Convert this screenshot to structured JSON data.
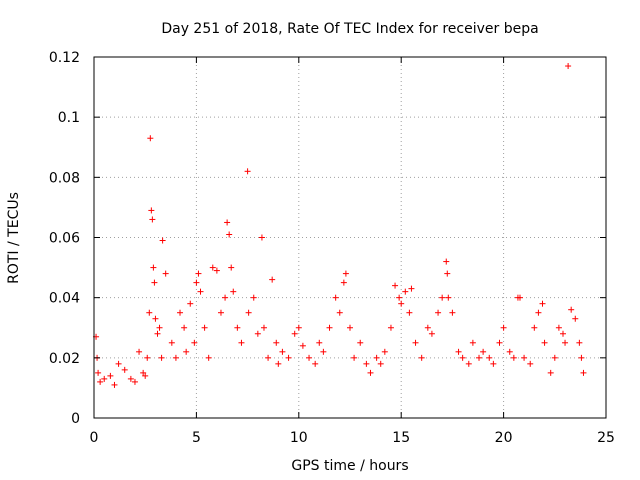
{
  "chart_data": {
    "type": "scatter",
    "title": "Day 251 of 2018, Rate Of TEC Index for receiver bepa",
    "xlabel": "GPS time / hours",
    "ylabel": "ROTI / TECUs",
    "xlim": [
      0,
      25
    ],
    "ylim": [
      0,
      0.12
    ],
    "x_ticks": [
      0,
      5,
      10,
      15,
      20,
      25
    ],
    "y_ticks": [
      0,
      0.02,
      0.04,
      0.06,
      0.08,
      0.1,
      0.12
    ],
    "x_tick_labels": [
      "0",
      "5",
      "10",
      "15",
      "20",
      "25"
    ],
    "y_tick_labels": [
      "0",
      "0.02",
      "0.04",
      "0.06",
      "0.08",
      "0.1",
      "0.12"
    ],
    "grid": true,
    "marker": "+",
    "series": [
      {
        "name": "ROTI",
        "color": "#ff0000",
        "x": [
          0.1,
          0.15,
          0.2,
          0.3,
          0.5,
          0.8,
          1.0,
          1.2,
          1.5,
          1.8,
          2.0,
          2.2,
          2.4,
          2.5,
          2.6,
          2.7,
          2.75,
          2.8,
          2.85,
          2.9,
          2.95,
          3.0,
          3.1,
          3.2,
          3.3,
          3.35,
          3.5,
          3.8,
          4.0,
          4.2,
          4.4,
          4.5,
          4.7,
          4.9,
          5.0,
          5.1,
          5.2,
          5.4,
          5.6,
          5.8,
          6.0,
          6.2,
          6.4,
          6.5,
          6.6,
          6.7,
          6.8,
          7.0,
          7.2,
          7.5,
          7.55,
          7.8,
          8.0,
          8.2,
          8.3,
          8.5,
          8.7,
          8.9,
          9.0,
          9.2,
          9.5,
          9.8,
          10.0,
          10.2,
          10.5,
          10.8,
          11.0,
          11.2,
          11.5,
          11.8,
          12.0,
          12.2,
          12.3,
          12.5,
          12.7,
          13.0,
          13.3,
          13.5,
          13.8,
          14.0,
          14.2,
          14.5,
          14.7,
          14.9,
          15.0,
          15.2,
          15.4,
          15.5,
          15.7,
          16.0,
          16.3,
          16.5,
          16.8,
          17.0,
          17.2,
          17.25,
          17.3,
          17.5,
          17.8,
          18.0,
          18.3,
          18.5,
          18.8,
          19.0,
          19.3,
          19.5,
          19.8,
          20.0,
          20.3,
          20.5,
          20.7,
          20.8,
          21.0,
          21.3,
          21.5,
          21.7,
          21.9,
          22.0,
          22.3,
          22.5,
          22.7,
          22.9,
          23.0,
          23.15,
          23.3,
          23.5,
          23.7,
          23.8,
          23.9
        ],
        "y": [
          0.027,
          0.02,
          0.015,
          0.012,
          0.013,
          0.014,
          0.011,
          0.018,
          0.016,
          0.013,
          0.012,
          0.022,
          0.015,
          0.014,
          0.02,
          0.035,
          0.093,
          0.069,
          0.066,
          0.05,
          0.045,
          0.033,
          0.028,
          0.03,
          0.02,
          0.059,
          0.048,
          0.025,
          0.02,
          0.035,
          0.03,
          0.022,
          0.038,
          0.025,
          0.045,
          0.048,
          0.042,
          0.03,
          0.02,
          0.05,
          0.049,
          0.035,
          0.04,
          0.065,
          0.061,
          0.05,
          0.042,
          0.03,
          0.025,
          0.082,
          0.035,
          0.04,
          0.028,
          0.06,
          0.03,
          0.02,
          0.046,
          0.025,
          0.018,
          0.022,
          0.02,
          0.028,
          0.03,
          0.024,
          0.02,
          0.018,
          0.025,
          0.022,
          0.03,
          0.04,
          0.035,
          0.045,
          0.048,
          0.03,
          0.02,
          0.025,
          0.018,
          0.015,
          0.02,
          0.018,
          0.022,
          0.03,
          0.044,
          0.04,
          0.038,
          0.042,
          0.035,
          0.043,
          0.025,
          0.02,
          0.03,
          0.028,
          0.035,
          0.04,
          0.052,
          0.048,
          0.04,
          0.035,
          0.022,
          0.02,
          0.018,
          0.025,
          0.02,
          0.022,
          0.02,
          0.018,
          0.025,
          0.03,
          0.022,
          0.02,
          0.04,
          0.04,
          0.02,
          0.018,
          0.03,
          0.035,
          0.038,
          0.025,
          0.015,
          0.02,
          0.03,
          0.028,
          0.025,
          0.117,
          0.036,
          0.033,
          0.025,
          0.02,
          0.015
        ]
      }
    ]
  }
}
